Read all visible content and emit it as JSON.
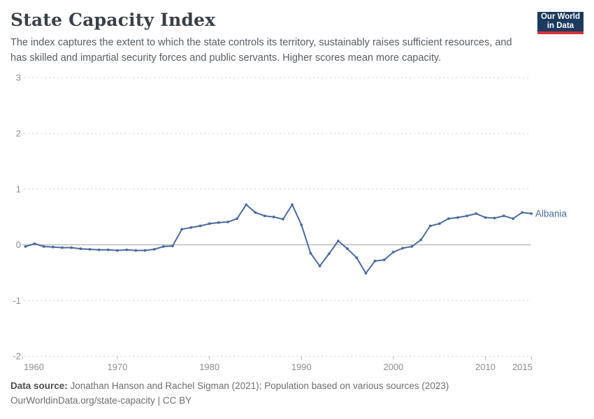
{
  "header": {
    "title": "State Capacity Index",
    "subtitle": "The index captures the extent to which the state controls its territory, sustainably raises sufficient resources, and has skilled and impartial security forces and public servants. Higher scores mean more capacity.",
    "logo": {
      "line1": "Our World",
      "line2": "in Data"
    }
  },
  "chart_data": {
    "type": "line",
    "title": "State Capacity Index",
    "xlabel": "",
    "ylabel": "",
    "xlim": [
      1960,
      2015
    ],
    "ylim": [
      -2,
      3
    ],
    "y_ticks": [
      3,
      2,
      1,
      0,
      -1,
      -2
    ],
    "x_ticks": [
      1960,
      1970,
      1980,
      1990,
      2000,
      2010,
      2015
    ],
    "grid": "horizontal-dashed",
    "zero_line": true,
    "legend_position": "end-of-line-label",
    "series": [
      {
        "name": "Albania",
        "color": "#4c6a9c",
        "x": [
          1960,
          1961,
          1962,
          1963,
          1964,
          1965,
          1966,
          1967,
          1968,
          1969,
          1970,
          1971,
          1972,
          1973,
          1974,
          1975,
          1976,
          1977,
          1978,
          1979,
          1980,
          1981,
          1982,
          1983,
          1984,
          1985,
          1986,
          1987,
          1988,
          1989,
          1990,
          1991,
          1992,
          1993,
          1994,
          1995,
          1996,
          1997,
          1998,
          1999,
          2000,
          2001,
          2002,
          2003,
          2004,
          2005,
          2006,
          2007,
          2008,
          2009,
          2010,
          2011,
          2012,
          2013,
          2014,
          2015
        ],
        "values": [
          -0.03,
          0.02,
          -0.03,
          -0.04,
          -0.05,
          -0.05,
          -0.07,
          -0.08,
          -0.09,
          -0.09,
          -0.1,
          -0.09,
          -0.1,
          -0.1,
          -0.08,
          -0.03,
          -0.02,
          0.28,
          0.31,
          0.34,
          0.38,
          0.4,
          0.41,
          0.47,
          0.72,
          0.58,
          0.52,
          0.5,
          0.46,
          0.72,
          0.36,
          -0.15,
          -0.38,
          -0.16,
          0.07,
          -0.07,
          -0.23,
          -0.51,
          -0.29,
          -0.27,
          -0.13,
          -0.06,
          -0.03,
          0.09,
          0.34,
          0.38,
          0.47,
          0.49,
          0.52,
          0.56,
          0.49,
          0.48,
          0.52,
          0.47,
          0.58,
          0.56
        ]
      }
    ]
  },
  "footer": {
    "source_label": "Data source:",
    "source_text": " Jonathan Hanson and Rachel Sigman (2021); Population based on various sources (2023)",
    "link_line": "OurWorldinData.org/state-capacity | CC BY"
  },
  "colors": {
    "line": "#4c6a9c",
    "entity_label": "#4c6a9c",
    "gridline": "#d4d4d4",
    "zero_line": "#a3a3a3",
    "axis_label": "#8d8d8d",
    "logo_bg": "#1c3a5e",
    "logo_red": "#d1333a"
  }
}
